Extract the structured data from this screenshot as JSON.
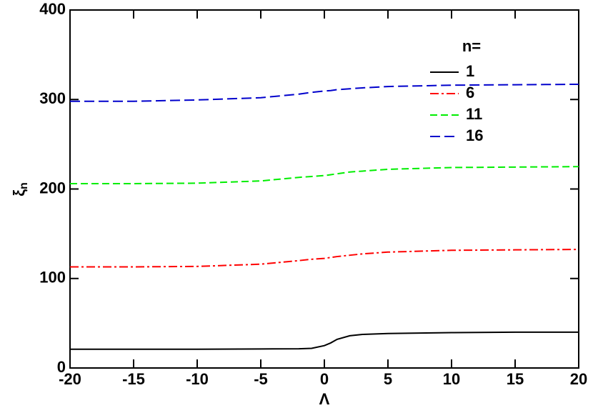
{
  "chart_data": {
    "type": "line",
    "x_label": "Λ",
    "y_label": {
      "symbol": "ξ",
      "subscript": "n"
    },
    "legend_title": "n=",
    "x": [
      -20,
      -15,
      -10,
      -5,
      -2,
      -1,
      0,
      0.5,
      1,
      2,
      3,
      5,
      10,
      15,
      20
    ],
    "series": [
      {
        "name": "1",
        "color": "#000000",
        "dash": "none",
        "values": [
          21,
          21,
          21,
          21.3,
          21.5,
          22,
          25,
          28,
          32,
          36,
          37.5,
          38.5,
          39.5,
          40,
          40
        ]
      },
      {
        "name": "6",
        "color": "#ff0000",
        "dash": "12,4,3,4",
        "values": [
          113,
          113,
          113.5,
          116,
          120,
          121.5,
          122.5,
          123.5,
          124.5,
          126,
          127.5,
          129.5,
          131.5,
          132,
          132.5
        ]
      },
      {
        "name": "11",
        "color": "#00ee00",
        "dash": "10,5",
        "values": [
          206,
          206,
          206.5,
          209,
          213,
          214,
          215,
          216,
          217,
          219,
          220,
          222,
          224,
          224.5,
          225
        ]
      },
      {
        "name": "16",
        "color": "#0000cc",
        "dash": "14,6",
        "values": [
          298,
          298,
          299.5,
          302,
          306,
          308,
          309.5,
          310,
          311,
          312,
          313,
          314.5,
          316,
          316.5,
          317
        ]
      }
    ],
    "xlim": [
      -20,
      20
    ],
    "xticks": [
      -20,
      -15,
      -10,
      -5,
      0,
      5,
      10,
      15,
      20
    ],
    "ylim": [
      0,
      400
    ],
    "yticks": [
      0,
      100,
      200,
      300,
      400
    ]
  }
}
